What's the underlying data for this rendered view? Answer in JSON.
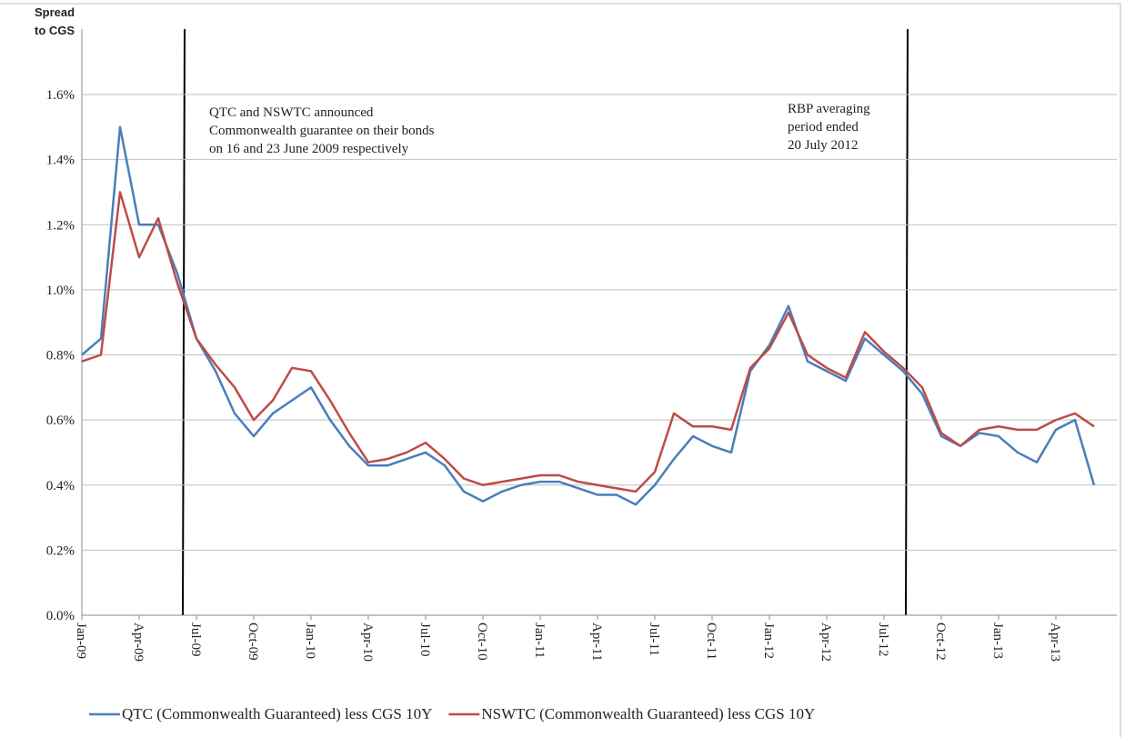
{
  "chart_data": {
    "type": "line",
    "y_axis_title": [
      "Spread",
      "to CGS"
    ],
    "categories": [
      "Jan-09",
      null,
      null,
      "Apr-09",
      null,
      null,
      "Jul-09",
      null,
      null,
      "Oct-09",
      null,
      null,
      "Jan-10",
      null,
      null,
      "Apr-10",
      null,
      null,
      "Jul-10",
      null,
      null,
      "Oct-10",
      null,
      null,
      "Jan-11",
      null,
      null,
      "Apr-11",
      null,
      null,
      "Jul-11",
      null,
      null,
      "Oct-11",
      null,
      null,
      "Jan-12",
      null,
      null,
      "Apr-12",
      null,
      null,
      "Jul-12",
      null,
      null,
      "Oct-12",
      null,
      null,
      "Jan-13",
      null,
      null,
      "Apr-13",
      null,
      null
    ],
    "series": [
      {
        "name": "QTC (Commonwealth Guaranteed) less CGS 10Y",
        "color": "#4a7ebb",
        "values": [
          0.8,
          0.85,
          1.5,
          1.2,
          1.2,
          1.05,
          0.85,
          0.75,
          0.62,
          0.55,
          0.62,
          0.66,
          0.7,
          0.6,
          0.52,
          0.46,
          0.46,
          0.48,
          0.5,
          0.46,
          0.38,
          0.35,
          0.38,
          0.4,
          0.41,
          0.41,
          0.39,
          0.37,
          0.37,
          0.34,
          0.4,
          0.48,
          0.55,
          0.52,
          0.5,
          0.75,
          0.83,
          0.95,
          0.78,
          0.75,
          0.72,
          0.85,
          0.8,
          0.75,
          0.68,
          0.55,
          0.52,
          0.56,
          0.55,
          0.5,
          0.47,
          0.57,
          0.6,
          0.4
        ]
      },
      {
        "name": "NSWTC (Commonwealth Guaranteed) less CGS 10Y",
        "color": "#be4b48",
        "values": [
          0.78,
          0.8,
          1.3,
          1.1,
          1.22,
          1.02,
          0.85,
          0.77,
          0.7,
          0.6,
          0.66,
          0.76,
          0.75,
          0.66,
          0.56,
          0.47,
          0.48,
          0.5,
          0.53,
          0.48,
          0.42,
          0.4,
          0.41,
          0.42,
          0.43,
          0.43,
          0.41,
          0.4,
          0.39,
          0.38,
          0.44,
          0.62,
          0.58,
          0.58,
          0.57,
          0.76,
          0.82,
          0.93,
          0.8,
          0.76,
          0.73,
          0.87,
          0.81,
          0.76,
          0.7,
          0.56,
          0.52,
          0.57,
          0.58,
          0.57,
          0.57,
          0.6,
          0.62,
          0.58
        ]
      }
    ],
    "ylim": [
      0,
      1.6
    ],
    "yticks": [
      {
        "value": 0,
        "label": "0.0%"
      },
      {
        "value": 0.2,
        "label": "0.2%"
      },
      {
        "value": 0.4,
        "label": "0.4%"
      },
      {
        "value": 0.6,
        "label": "0.6%"
      },
      {
        "value": 0.8,
        "label": "0.8%"
      },
      {
        "value": 1.0,
        "label": "1.0%"
      },
      {
        "value": 1.2,
        "label": "1.2%"
      },
      {
        "value": 1.4,
        "label": "1.4%"
      },
      {
        "value": 1.6,
        "label": "1.6%"
      }
    ],
    "grid": true,
    "legend": "bottom",
    "annotations": [
      [
        "QTC and NSWTC announced",
        "Commonwealth guarantee on their bonds",
        "on 16 and 23 June 2009 respectively"
      ],
      [
        "RBP averaging",
        "period ended",
        "20 July 2012"
      ]
    ]
  }
}
